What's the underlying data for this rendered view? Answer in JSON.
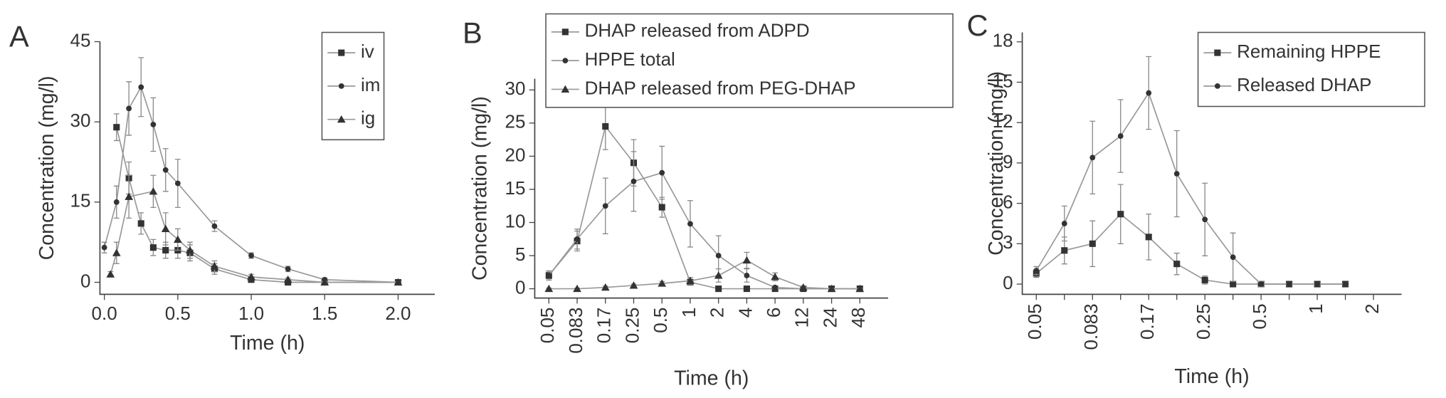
{
  "chart_data": [
    {
      "type": "line",
      "panel": "A",
      "xlabel": "Time (h)",
      "ylabel": "Concentration (mg/l)",
      "xlim": [
        -0.03,
        2.25
      ],
      "xticks": [
        {
          "value": 0,
          "label": "0.0"
        },
        {
          "value": 0.5,
          "label": "0.5"
        },
        {
          "value": 1,
          "label": "1.0"
        },
        {
          "value": 1.5,
          "label": "1.5"
        },
        {
          "value": 2,
          "label": "2.0"
        }
      ],
      "ylim": [
        -2.25,
        45
      ],
      "yticks": [
        0,
        15,
        30,
        45
      ],
      "series": [
        {
          "name": "iv",
          "marker": "square",
          "color": "#333",
          "x": [
            0.083,
            0.167,
            0.25,
            0.333,
            0.417,
            0.5,
            0.583,
            0.75,
            1.0,
            1.25,
            1.5,
            2.0
          ],
          "values": [
            29,
            19.5,
            11,
            6.5,
            6,
            6,
            5.5,
            2.5,
            0.5,
            0,
            0,
            0
          ],
          "errors": [
            2.5,
            3,
            2,
            1.5,
            1.5,
            1.5,
            1.5,
            1,
            0.5,
            0.3,
            0.2,
            0.1
          ]
        },
        {
          "name": "im",
          "marker": "circle",
          "color": "#333",
          "x": [
            0,
            0.083,
            0.167,
            0.25,
            0.333,
            0.417,
            0.5,
            0.75,
            1.0,
            1.25,
            1.5,
            2.0
          ],
          "values": [
            6.5,
            15,
            32.5,
            36.5,
            29.5,
            21,
            18.5,
            10.5,
            5,
            2.5,
            0.5,
            0
          ],
          "errors": [
            1,
            3,
            5,
            5.5,
            5,
            4,
            4.5,
            1,
            0.5,
            0.5,
            0.3,
            0.1
          ]
        },
        {
          "name": "ig",
          "marker": "triangle",
          "color": "#333",
          "x": [
            0.042,
            0.083,
            0.167,
            0.333,
            0.417,
            0.5,
            0.583,
            0.75,
            1.0,
            1.25,
            1.5,
            2.0
          ],
          "values": [
            1.5,
            5.5,
            16,
            17,
            10,
            8,
            6,
            3,
            1,
            0.5,
            0,
            0
          ],
          "errors": [
            0.5,
            2,
            4,
            3,
            3,
            2,
            1.5,
            1,
            0.5,
            0.3,
            0.2,
            0.1
          ]
        }
      ]
    },
    {
      "type": "line",
      "panel": "B",
      "xlabel": "Time (h)",
      "ylabel": "Concentration (mg/l)",
      "categories": [
        "0.05",
        "0.083",
        "0.17",
        "0.25",
        "0.5",
        "1",
        "2",
        "4",
        "6",
        "12",
        "24",
        "48"
      ],
      "ylim": [
        -1.4,
        31.7
      ],
      "yticks": [
        0,
        5,
        10,
        15,
        20,
        25,
        30
      ],
      "series": [
        {
          "name": "DHAP released from ADPD",
          "marker": "square",
          "color": "#333",
          "values": [
            2,
            7.2,
            24.5,
            19,
            12.3,
            1,
            0,
            0,
            0,
            0,
            0,
            0
          ],
          "errors": [
            0.5,
            1.5,
            3.5,
            3.5,
            1.5,
            0.3,
            0.1,
            0.1,
            0.1,
            0.1,
            0.1,
            0.1
          ]
        },
        {
          "name": "HPPE total",
          "marker": "circle",
          "color": "#333",
          "values": [
            2,
            7.5,
            12.5,
            16.2,
            17.5,
            9.8,
            5,
            2,
            0.2,
            0,
            0,
            0
          ],
          "errors": [
            0.7,
            1.5,
            4.2,
            4.5,
            4,
            3.5,
            3,
            1,
            0.2,
            0.1,
            0.1,
            0.1
          ]
        },
        {
          "name": "DHAP released from PEG-DHAP",
          "marker": "triangle",
          "color": "#333",
          "values": [
            0,
            0,
            0.2,
            0.5,
            0.8,
            1.2,
            2,
            4.3,
            1.8,
            0.2,
            0,
            0
          ],
          "errors": [
            0.1,
            0.1,
            0.2,
            0.2,
            0.3,
            0.5,
            1,
            1.2,
            0.6,
            0.2,
            0.1,
            0.1
          ]
        }
      ]
    },
    {
      "type": "line",
      "panel": "C",
      "xlabel": "Time (h)",
      "ylabel": "Concentration (mg/l)",
      "categories": [
        "0.05",
        null,
        "0.083",
        null,
        "0.17",
        null,
        "0.25",
        null,
        "0.5",
        null,
        "1",
        null,
        "2"
      ],
      "ylim": [
        -0.76,
        18.7
      ],
      "yticks": [
        0,
        3,
        6,
        9,
        12,
        15,
        18
      ],
      "series": [
        {
          "name": "Remaining HPPE",
          "marker": "square",
          "color": "#333",
          "values": [
            0.8,
            2.5,
            3,
            5.2,
            3.5,
            1.5,
            0.3,
            0,
            0,
            0,
            0,
            0,
            null
          ],
          "errors": [
            0.3,
            1,
            1.7,
            2.2,
            1.7,
            0.8,
            0.3,
            0.1,
            0.1,
            0.1,
            0.1,
            0.1,
            null
          ]
        },
        {
          "name": "Released DHAP",
          "marker": "circle",
          "color": "#333",
          "values": [
            1,
            4.5,
            9.4,
            11,
            14.2,
            8.2,
            4.8,
            2,
            0,
            0,
            0,
            0,
            null
          ],
          "errors": [
            0.3,
            1.3,
            2.7,
            2.7,
            2.7,
            3.2,
            2.7,
            1.8,
            0.2,
            0.1,
            0.1,
            0.1,
            null
          ]
        }
      ]
    }
  ]
}
